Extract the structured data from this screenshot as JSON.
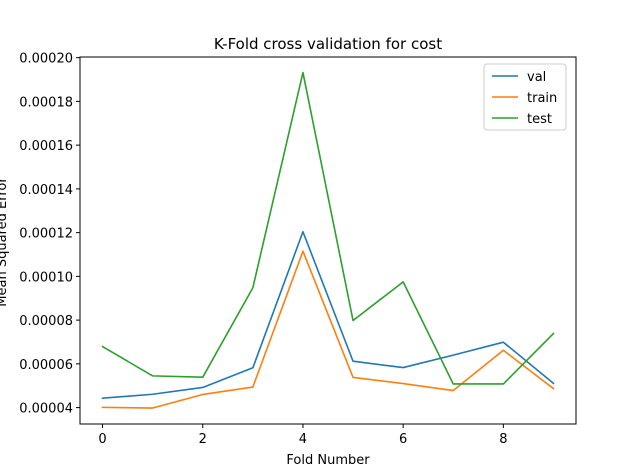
{
  "chart_data": {
    "type": "line",
    "title": "K-Fold cross validation for cost",
    "xlabel": "Fold Number",
    "ylabel": "Mean Squared Error",
    "x": [
      0,
      1,
      2,
      3,
      4,
      5,
      6,
      7,
      8,
      9
    ],
    "xlim": [
      -0.45,
      9.45
    ],
    "ylim": [
      3.25e-05,
      0.0002003
    ],
    "xticks": [
      0,
      2,
      4,
      6,
      8
    ],
    "xtick_labels": [
      "0",
      "2",
      "4",
      "6",
      "8"
    ],
    "yticks": [
      4e-05,
      6e-05,
      8e-05,
      0.0001,
      0.00012,
      0.00014,
      0.00016,
      0.00018,
      0.0002
    ],
    "ytick_labels": [
      "0.00004",
      "0.00006",
      "0.00008",
      "0.00010",
      "0.00012",
      "0.00014",
      "0.00016",
      "0.00018",
      "0.00020"
    ],
    "grid": false,
    "legend_position": "top-right",
    "series": [
      {
        "name": "val",
        "color": "#1f77b4",
        "values": [
          4.43e-05,
          4.61e-05,
          4.92e-05,
          5.82e-05,
          0.0001204,
          6.12e-05,
          5.83e-05,
          6.4e-05,
          6.99e-05,
          5.11e-05
        ]
      },
      {
        "name": "train",
        "color": "#ff7f0e",
        "values": [
          4.01e-05,
          3.98e-05,
          4.6e-05,
          4.94e-05,
          0.0001115,
          5.38e-05,
          5.1e-05,
          4.78e-05,
          6.62e-05,
          4.87e-05
        ]
      },
      {
        "name": "test",
        "color": "#2ca02c",
        "values": [
          6.79e-05,
          5.45e-05,
          5.39e-05,
          9.48e-05,
          0.0001932,
          7.98e-05,
          9.75e-05,
          5.08e-05,
          5.08e-05,
          7.39e-05
        ]
      }
    ]
  }
}
